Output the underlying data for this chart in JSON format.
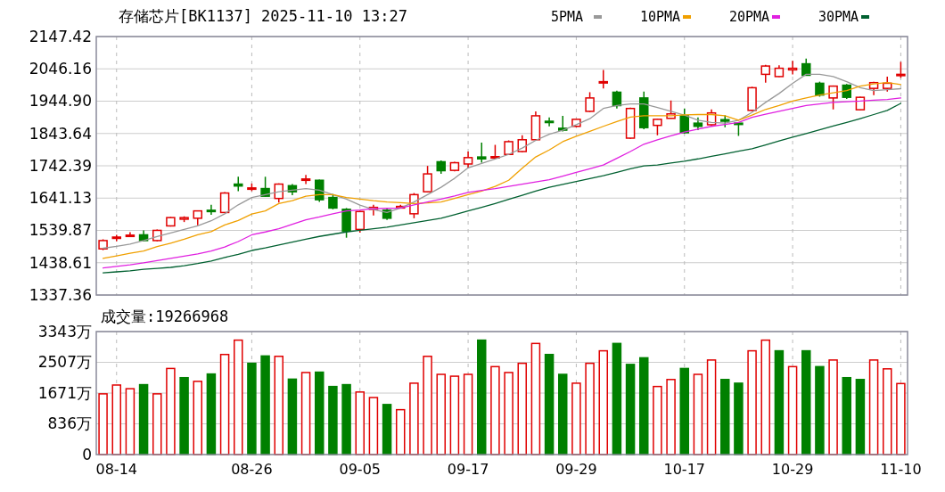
{
  "chart_data": [
    {
      "type": "candlestick",
      "title": "存储芯片[BK1137] 2025-11-10 13:27",
      "categories": [
        null,
        null,
        null,
        null,
        null,
        null,
        null,
        null,
        null,
        null,
        null,
        null,
        null,
        null,
        null,
        null,
        null,
        null,
        null,
        null,
        null,
        null,
        null,
        null,
        null,
        null,
        null,
        null,
        null,
        null,
        null,
        null,
        null,
        null,
        null,
        null,
        null,
        null,
        null,
        null,
        null,
        null,
        null,
        null,
        null,
        null,
        null,
        null,
        null,
        null,
        null,
        null,
        null,
        null,
        null,
        null,
        null,
        null,
        null,
        null
      ],
      "ohlc": [
        [
          1482,
          1512,
          1478,
          1508
        ],
        [
          1515,
          1526,
          1506,
          1519
        ],
        [
          1522,
          1534,
          1521,
          1525
        ],
        [
          1526,
          1540,
          1506,
          1508
        ],
        [
          1508,
          1543,
          1506,
          1540
        ],
        [
          1554,
          1582,
          1552,
          1580
        ],
        [
          1575,
          1584,
          1566,
          1580
        ],
        [
          1578,
          1603,
          1556,
          1601
        ],
        [
          1603,
          1620,
          1589,
          1599
        ],
        [
          1596,
          1660,
          1594,
          1657
        ],
        [
          1685,
          1708,
          1663,
          1679
        ],
        [
          1669,
          1687,
          1663,
          1673
        ],
        [
          1671,
          1708,
          1646,
          1647
        ],
        [
          1640,
          1687,
          1627,
          1685
        ],
        [
          1680,
          1685,
          1650,
          1661
        ],
        [
          1697,
          1714,
          1685,
          1701
        ],
        [
          1697,
          1699,
          1629,
          1636
        ],
        [
          1643,
          1654,
          1606,
          1610
        ],
        [
          1606,
          1610,
          1517,
          1538
        ],
        [
          1543,
          1601,
          1533,
          1599
        ],
        [
          1606,
          1620,
          1587,
          1612
        ],
        [
          1603,
          1608,
          1573,
          1578
        ],
        [
          1610,
          1620,
          1608,
          1615
        ],
        [
          1592,
          1657,
          1578,
          1652
        ],
        [
          1661,
          1742,
          1660,
          1717
        ],
        [
          1755,
          1759,
          1717,
          1727
        ],
        [
          1728,
          1755,
          1725,
          1752
        ],
        [
          1748,
          1787,
          1736,
          1768
        ],
        [
          1770,
          1815,
          1752,
          1764
        ],
        [
          1767,
          1808,
          1765,
          1771
        ],
        [
          1778,
          1822,
          1776,
          1818
        ],
        [
          1787,
          1838,
          1784,
          1824
        ],
        [
          1824,
          1913,
          1822,
          1899
        ],
        [
          1882,
          1894,
          1866,
          1878
        ],
        [
          1860,
          1899,
          1850,
          1854
        ],
        [
          1866,
          1890,
          1864,
          1888
        ],
        [
          1913,
          1973,
          1911,
          1955
        ],
        [
          2003,
          2043,
          1985,
          2006
        ],
        [
          1973,
          1978,
          1922,
          1931
        ],
        [
          1829,
          1925,
          1827,
          1922
        ],
        [
          1955,
          1975,
          1857,
          1862
        ],
        [
          1869,
          1890,
          1838,
          1888
        ],
        [
          1891,
          1947,
          1890,
          1905
        ],
        [
          1899,
          1922,
          1843,
          1846
        ],
        [
          1876,
          1894,
          1854,
          1866
        ],
        [
          1871,
          1919,
          1869,
          1908
        ],
        [
          1887,
          1901,
          1863,
          1882
        ],
        [
          1876,
          1878,
          1836,
          1873
        ],
        [
          1916,
          1990,
          1914,
          1987
        ],
        [
          2029,
          2059,
          2003,
          2055
        ],
        [
          2022,
          2057,
          2020,
          2048
        ],
        [
          2043,
          2071,
          2029,
          2048
        ],
        [
          2062,
          2078,
          2025,
          2026
        ],
        [
          2001,
          2006,
          1959,
          1964
        ],
        [
          1955,
          1994,
          1919,
          1992
        ],
        [
          1995,
          1999,
          1952,
          1957
        ],
        [
          1918,
          1959,
          1916,
          1957
        ],
        [
          1985,
          2006,
          1964,
          2003
        ],
        [
          1985,
          2022,
          1975,
          2001
        ],
        [
          2025,
          2068,
          2018,
          2029
        ]
      ],
      "colors": [
        "#e00000",
        "#e00000",
        "#e00000",
        "#008000",
        "#e00000",
        "#e00000",
        "#e00000",
        "#e00000",
        "#008000",
        "#e00000",
        "#008000",
        "#e00000",
        "#008000",
        "#e00000",
        "#008000",
        "#e00000",
        "#008000",
        "#008000",
        "#008000",
        "#e00000",
        "#e00000",
        "#008000",
        "#e00000",
        "#e00000",
        "#e00000",
        "#008000",
        "#e00000",
        "#e00000",
        "#008000",
        "#e00000",
        "#e00000",
        "#e00000",
        "#e00000",
        "#008000",
        "#008000",
        "#e00000",
        "#e00000",
        "#e00000",
        "#008000",
        "#e00000",
        "#008000",
        "#e00000",
        "#e00000",
        "#008000",
        "#008000",
        "#e00000",
        "#008000",
        "#008000",
        "#e00000",
        "#e00000",
        "#e00000",
        "#e00000",
        "#008000",
        "#008000",
        "#e00000",
        "#008000",
        "#e00000",
        "#e00000",
        "#e00000",
        "#e00000"
      ],
      "series": [
        {
          "name": "5PMA",
          "type": "line",
          "color": "#999999",
          "values": [
            1484,
            1490,
            1497,
            1508,
            1521,
            1532,
            1543,
            1554,
            1570,
            1592,
            1620,
            1643,
            1652,
            1661,
            1666,
            1671,
            1666,
            1652,
            1638,
            1619,
            1605,
            1596,
            1610,
            1629,
            1652,
            1675,
            1703,
            1736,
            1750,
            1764,
            1778,
            1798,
            1822,
            1841,
            1854,
            1871,
            1890,
            1922,
            1931,
            1936,
            1936,
            1925,
            1913,
            1901,
            1885,
            1878,
            1876,
            1885,
            1910,
            1941,
            1969,
            2001,
            2029,
            2029,
            2022,
            2006,
            1987,
            1978,
            1981,
            1984
          ]
        },
        {
          "name": "10PMA",
          "type": "line",
          "color": "#f0a000",
          "values": [
            1452,
            1460,
            1468,
            1475,
            1489,
            1500,
            1512,
            1526,
            1536,
            1557,
            1571,
            1591,
            1601,
            1624,
            1633,
            1647,
            1652,
            1652,
            1643,
            1638,
            1633,
            1629,
            1627,
            1624,
            1626,
            1629,
            1640,
            1652,
            1663,
            1678,
            1697,
            1735,
            1770,
            1792,
            1818,
            1835,
            1850,
            1866,
            1881,
            1895,
            1899,
            1899,
            1899,
            1902,
            1903,
            1903,
            1899,
            1885,
            1901,
            1919,
            1931,
            1945,
            1955,
            1964,
            1971,
            1978,
            1992,
            1999,
            2003,
            1997
          ]
        },
        {
          "name": "20PMA",
          "type": "line",
          "color": "#e020e0",
          "values": [
            1422,
            1427,
            1432,
            1438,
            1445,
            1452,
            1459,
            1466,
            1475,
            1488,
            1505,
            1526,
            1535,
            1545,
            1559,
            1573,
            1582,
            1592,
            1601,
            1604,
            1608,
            1609,
            1610,
            1620,
            1629,
            1638,
            1648,
            1659,
            1665,
            1671,
            1678,
            1685,
            1692,
            1699,
            1710,
            1722,
            1733,
            1745,
            1766,
            1787,
            1810,
            1824,
            1836,
            1848,
            1857,
            1866,
            1872,
            1878,
            1894,
            1904,
            1913,
            1922,
            1931,
            1936,
            1941,
            1943,
            1945,
            1948,
            1950,
            1955
          ]
        },
        {
          "name": "30PMA",
          "type": "line",
          "color": "#006030",
          "values": [
            1407,
            1410,
            1413,
            1418,
            1421,
            1424,
            1429,
            1436,
            1444,
            1455,
            1465,
            1477,
            1485,
            1494,
            1503,
            1512,
            1521,
            1528,
            1535,
            1540,
            1545,
            1550,
            1557,
            1564,
            1571,
            1578,
            1589,
            1601,
            1612,
            1624,
            1637,
            1650,
            1663,
            1675,
            1684,
            1693,
            1702,
            1711,
            1722,
            1733,
            1742,
            1745,
            1751,
            1757,
            1764,
            1772,
            1780,
            1788,
            1796,
            1808,
            1820,
            1832,
            1843,
            1855,
            1867,
            1878,
            1890,
            1903,
            1916,
            1938
          ]
        }
      ],
      "ylim": [
        1337.36,
        2147.42
      ],
      "yticks": [
        1337.36,
        1438.61,
        1539.87,
        1641.13,
        1742.39,
        1843.64,
        {
          "value": 1944.9,
          "label": "1944.90"
        },
        2046.16,
        2147.42
      ],
      "grid": true,
      "legend": "top right",
      "tick_labels": "y"
    },
    {
      "type": "bar",
      "title": "成交量:19266968",
      "categories": [
        null,
        "08-14",
        null,
        null,
        null,
        null,
        null,
        null,
        null,
        null,
        null,
        "08-26",
        null,
        null,
        null,
        null,
        null,
        null,
        null,
        "09-05",
        null,
        null,
        null,
        null,
        null,
        null,
        null,
        "09-17",
        null,
        null,
        null,
        null,
        null,
        null,
        null,
        "09-29",
        null,
        null,
        null,
        null,
        null,
        null,
        null,
        "10-17",
        null,
        null,
        null,
        null,
        null,
        null,
        null,
        "10-29",
        null,
        null,
        null,
        null,
        null,
        null,
        null,
        "11-10"
      ],
      "values": [
        1650,
        1890,
        1790,
        1900,
        1650,
        2340,
        2090,
        1990,
        2190,
        2720,
        3110,
        2480,
        2680,
        2670,
        2050,
        2230,
        2240,
        1850,
        1900,
        1700,
        1550,
        1360,
        1220,
        1940,
        2670,
        2180,
        2130,
        2180,
        3110,
        2390,
        2230,
        2480,
        3020,
        2720,
        2180,
        1940,
        2480,
        2820,
        3020,
        2450,
        2630,
        1850,
        2040,
        2340,
        2180,
        2570,
        2040,
        1940,
        2820,
        3110,
        2820,
        2390,
        2820,
        2390,
        2570,
        2090,
        2040,
        2570,
        2330,
        1930
      ],
      "colors": [
        "#e00000",
        "#e00000",
        "#e00000",
        "#008000",
        "#e00000",
        "#e00000",
        "#008000",
        "#e00000",
        "#008000",
        "#e00000",
        "#e00000",
        "#008000",
        "#008000",
        "#e00000",
        "#008000",
        "#e00000",
        "#008000",
        "#008000",
        "#008000",
        "#e00000",
        "#e00000",
        "#008000",
        "#e00000",
        "#e00000",
        "#e00000",
        "#e00000",
        "#e00000",
        "#e00000",
        "#008000",
        "#e00000",
        "#e00000",
        "#e00000",
        "#e00000",
        "#008000",
        "#008000",
        "#e00000",
        "#e00000",
        "#e00000",
        "#008000",
        "#008000",
        "#008000",
        "#e00000",
        "#e00000",
        "#008000",
        "#e00000",
        "#e00000",
        "#008000",
        "#008000",
        "#e00000",
        "#e00000",
        "#008000",
        "#e00000",
        "#008000",
        "#008000",
        "#e00000",
        "#008000",
        "#008000",
        "#e00000",
        "#e00000",
        "#e00000"
      ],
      "ylim": [
        0,
        3343
      ],
      "yticks": [
        0,
        {
          "value": 836,
          "label": "836万"
        },
        {
          "value": 1671,
          "label": "1671万"
        },
        {
          "value": 2507,
          "label": "2507万"
        },
        {
          "value": 3343,
          "label": "3343万"
        }
      ],
      "grid": true
    }
  ]
}
